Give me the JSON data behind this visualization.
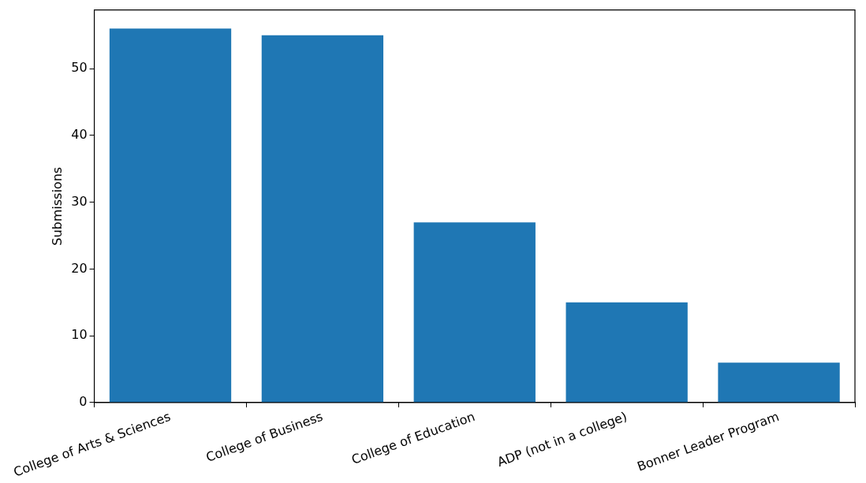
{
  "chart_data": {
    "type": "bar",
    "ylabel": "Submissions",
    "categories": [
      "College of Arts & Sciences",
      "College of Business",
      "College of Education",
      "ADP (not in a college)",
      "Bonner Leader Program"
    ],
    "values": [
      56,
      55,
      27,
      15,
      6
    ],
    "color": "#1f77b4",
    "ylim": [
      0,
      58.8
    ],
    "yticks": [
      0,
      10,
      20,
      30,
      40,
      50
    ]
  }
}
